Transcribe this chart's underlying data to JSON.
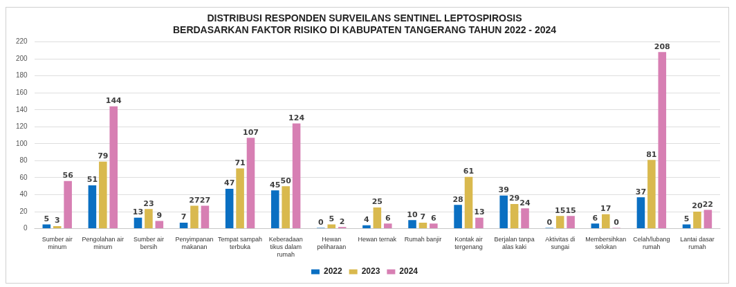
{
  "chart_data": {
    "type": "bar",
    "title": [
      "DISTRIBUSI RESPONDEN SURVEILANS SENTINEL LEPTOSPIROSIS",
      "BERDASARKAN FAKTOR RISIKO DI KABUPATEN TANGERANG TAHUN 2022 - 2024"
    ],
    "categories": [
      "Sumber air minum",
      "Pengolahan air minum",
      "Sumber air bersih",
      "Penyimpanan makanan",
      "Tempat sampah terbuka",
      "Keberadaan tikus dalam rumah",
      "Hewan peliharaan",
      "Hewan ternak",
      "Rumah banjir",
      "Kontak air tergenang",
      "Berjalan tanpa alas kaki",
      "Aktivitas di sungai",
      "Membersihkan selokan",
      "Celah/lubang rumah",
      "Lantai dasar rumah"
    ],
    "series": [
      {
        "name": "2022",
        "color": "#0a6fc2",
        "values": [
          5,
          51,
          13,
          7,
          47,
          45,
          0,
          4,
          10,
          28,
          39,
          0,
          6,
          37,
          5
        ]
      },
      {
        "name": "2023",
        "color": "#d9b94e",
        "values": [
          3,
          79,
          23,
          27,
          71,
          50,
          5,
          25,
          7,
          61,
          29,
          15,
          17,
          81,
          20
        ]
      },
      {
        "name": "2024",
        "color": "#d77fb3",
        "values": [
          56,
          144,
          9,
          27,
          107,
          124,
          2,
          6,
          6,
          13,
          24,
          15,
          0,
          208,
          22
        ]
      }
    ],
    "ylim": [
      0,
      220
    ],
    "yticks": [
      0,
      20,
      40,
      60,
      80,
      100,
      120,
      140,
      160,
      180,
      200,
      220
    ],
    "grid": "y",
    "legend": "bottom",
    "data_labels": true
  }
}
